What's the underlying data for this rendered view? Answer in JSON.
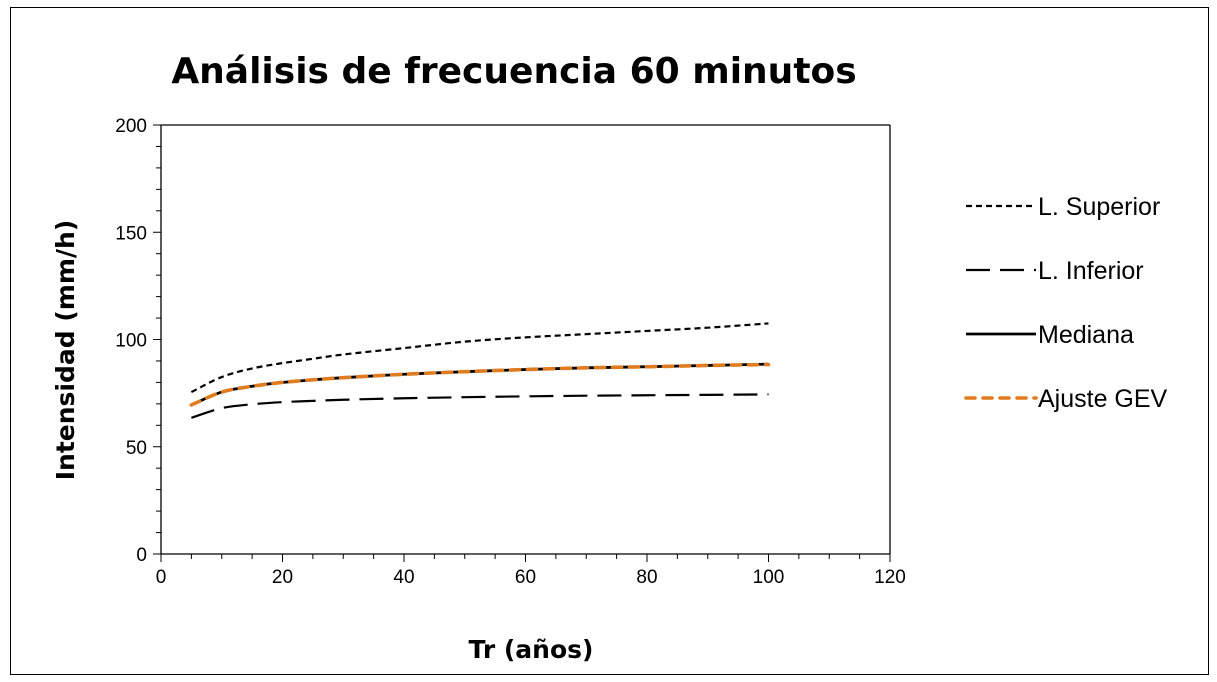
{
  "chart_data": {
    "type": "line",
    "title": "Análisis de frecuencia 60 minutos",
    "xlabel": "Tr (años)",
    "ylabel": "Intensidad (mm/h)",
    "xlim": [
      0,
      120
    ],
    "ylim": [
      0,
      200
    ],
    "x_ticks": [
      "0",
      "20",
      "40",
      "60",
      "80",
      "100",
      "120"
    ],
    "y_ticks": [
      "0",
      "50",
      "100",
      "150",
      "200"
    ],
    "grid": false,
    "legend_position": "right",
    "x": [
      5,
      10,
      15,
      20,
      25,
      30,
      40,
      50,
      60,
      70,
      80,
      90,
      100
    ],
    "series": [
      {
        "name": "L. Superior",
        "color": "#000000",
        "dash": "short-dash",
        "values": [
          75.5,
          82.5,
          86.5,
          89.0,
          91.0,
          93.0,
          96.0,
          99.0,
          101.0,
          102.5,
          104.0,
          105.5,
          107.5
        ]
      },
      {
        "name": "L. Inferior",
        "color": "#000000",
        "dash": "long-dash",
        "values": [
          63.5,
          68.0,
          69.8,
          70.8,
          71.4,
          71.9,
          72.6,
          73.1,
          73.5,
          73.8,
          74.0,
          74.2,
          74.4
        ]
      },
      {
        "name": "Mediana",
        "color": "#000000",
        "dash": "solid",
        "values": [
          69.5,
          75.5,
          78.2,
          80.0,
          81.2,
          82.2,
          83.8,
          85.0,
          86.0,
          86.8,
          87.3,
          87.9,
          88.5
        ]
      },
      {
        "name": "Ajuste GEV",
        "color": "#E07B20",
        "dash": "round-dash",
        "values": [
          69.5,
          75.5,
          78.2,
          80.0,
          81.2,
          82.2,
          83.8,
          85.0,
          86.0,
          86.8,
          87.3,
          87.9,
          88.3
        ]
      }
    ]
  }
}
